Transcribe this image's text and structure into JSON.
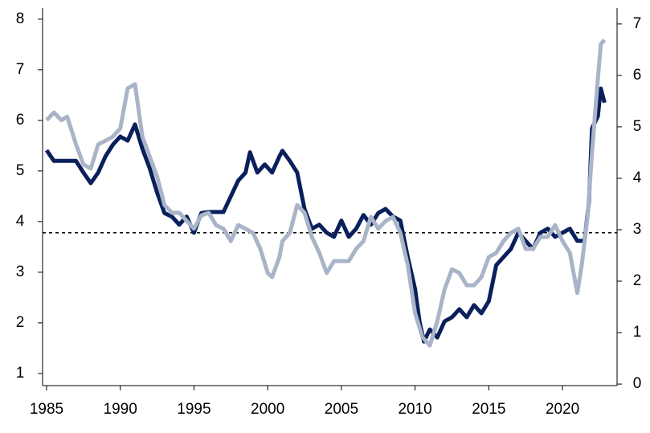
{
  "chart_data": {
    "type": "line",
    "xlim": [
      1984.73,
      2023.7
    ],
    "xticks": [
      1985,
      1990,
      1995,
      2000,
      2005,
      2010,
      2015,
      2020
    ],
    "ylim": [
      0.76,
      8.22
    ],
    "yticks": [
      1,
      2,
      3,
      4,
      5,
      6,
      7,
      8
    ],
    "y2lim": [
      -0.03,
      7.31
    ],
    "y2ticks": [
      0,
      1,
      2,
      3,
      4,
      5,
      6,
      7
    ],
    "reference_line": {
      "value": 3.78,
      "style": "dashed",
      "color": "#000000"
    },
    "series": [
      {
        "color": "#0a1f5c",
        "axis": "y",
        "x": [
          1985,
          1985.5,
          1986,
          1987,
          1987.5,
          1988,
          1988.5,
          1989,
          1989.5,
          1990,
          1990.5,
          1991,
          1991.5,
          1992,
          1992.5,
          1993,
          1993.5,
          1994,
          1994.5,
          1995,
          1995.5,
          1996,
          1997,
          1998,
          1998.5,
          1998.8,
          1999.3,
          1999.8,
          2000.3,
          2000.8,
          2001,
          2001.5,
          2002,
          2002.5,
          2003,
          2003.5,
          2004,
          2004.5,
          2005,
          2005.5,
          2006,
          2006.5,
          2007,
          2007.5,
          2008,
          2008.5,
          2009,
          2009.5,
          2010,
          2010.3,
          2010.6,
          2011,
          2011.5,
          2012,
          2012.5,
          2013,
          2013.5,
          2014,
          2014.5,
          2015,
          2015.5,
          2016,
          2016.5,
          2017,
          2017.5,
          2018,
          2018.5,
          2019,
          2019.5,
          2020,
          2020.5,
          2021,
          2021.5,
          2021.8,
          2022,
          2022.4,
          2022.6,
          2022.85
        ],
        "values": [
          5.41,
          5.2,
          5.2,
          5.2,
          4.97,
          4.76,
          4.97,
          5.29,
          5.52,
          5.68,
          5.6,
          5.92,
          5.44,
          5.05,
          4.57,
          4.17,
          4.1,
          3.94,
          4.1,
          3.78,
          4.17,
          4.19,
          4.19,
          4.81,
          4.97,
          5.37,
          4.97,
          5.13,
          4.97,
          5.29,
          5.4,
          5.2,
          4.97,
          4.25,
          3.86,
          3.94,
          3.78,
          3.7,
          4.02,
          3.7,
          3.86,
          4.13,
          3.94,
          4.17,
          4.25,
          4.1,
          4.02,
          3.3,
          2.67,
          2.03,
          1.63,
          1.87,
          1.71,
          2.03,
          2.11,
          2.27,
          2.11,
          2.35,
          2.19,
          2.43,
          3.14,
          3.3,
          3.46,
          3.78,
          3.62,
          3.46,
          3.78,
          3.86,
          3.7,
          3.78,
          3.86,
          3.62,
          3.62,
          4.41,
          5.84,
          6.08,
          6.63,
          6.35
        ]
      },
      {
        "color": "#a9b4c8",
        "axis": "y2",
        "x": [
          1985,
          1985.5,
          1986,
          1986.4,
          1987,
          1987.5,
          1988,
          1988.5,
          1989,
          1989.5,
          1990,
          1990.5,
          1991,
          1991.5,
          1992,
          1992.5,
          1993,
          1993.5,
          1994,
          1995,
          1995.5,
          1996,
          1996.5,
          1997,
          1997.5,
          1998,
          1998.5,
          1999,
          1999.5,
          2000,
          2000.3,
          2000.8,
          2001,
          2001.5,
          2002,
          2002.5,
          2003,
          2003.5,
          2004,
          2004.5,
          2005,
          2005.5,
          2006,
          2006.5,
          2007,
          2007.5,
          2008,
          2008.5,
          2009,
          2009.5,
          2010,
          2010.5,
          2011,
          2011.5,
          2012,
          2012.5,
          2013,
          2013.5,
          2014,
          2014.5,
          2015,
          2015.5,
          2016,
          2016.5,
          2017,
          2017.5,
          2018,
          2018.5,
          2019,
          2019.5,
          2020,
          2020.5,
          2021,
          2021.3,
          2021.7,
          2022,
          2022.3,
          2022.6,
          2022.85
        ],
        "values": [
          5.13,
          5.28,
          5.13,
          5.2,
          4.66,
          4.27,
          4.19,
          4.66,
          4.73,
          4.81,
          4.97,
          5.75,
          5.83,
          4.81,
          4.42,
          4.03,
          3.48,
          3.33,
          3.33,
          3.02,
          3.28,
          3.33,
          3.09,
          3.02,
          2.78,
          3.09,
          3.02,
          2.94,
          2.63,
          2.16,
          2.08,
          2.47,
          2.78,
          2.94,
          3.48,
          3.33,
          2.86,
          2.55,
          2.16,
          2.39,
          2.39,
          2.39,
          2.63,
          2.78,
          3.25,
          3.02,
          3.17,
          3.25,
          2.94,
          2.31,
          1.38,
          0.91,
          0.75,
          1.22,
          1.84,
          2.23,
          2.16,
          1.92,
          1.92,
          2.08,
          2.47,
          2.55,
          2.78,
          2.94,
          3.02,
          2.63,
          2.63,
          2.86,
          2.86,
          3.09,
          2.78,
          2.55,
          1.77,
          2.31,
          3.25,
          4.5,
          5.59,
          6.61,
          6.69
        ]
      }
    ]
  }
}
